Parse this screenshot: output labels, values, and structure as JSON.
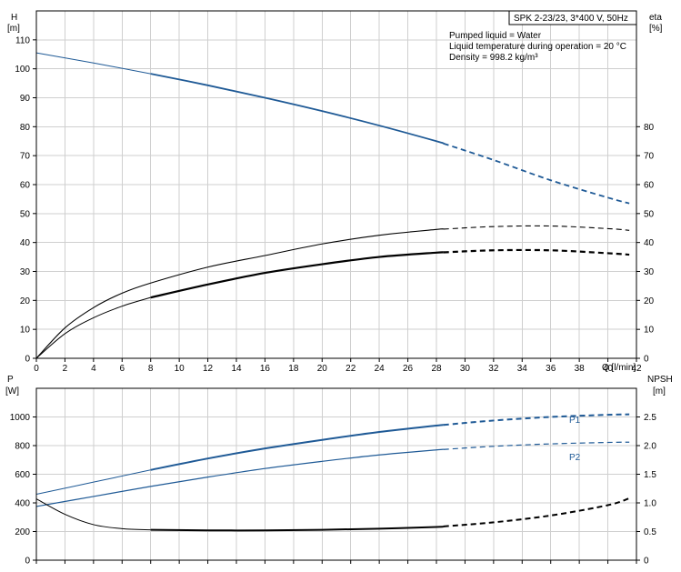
{
  "info_box": {
    "title": "SPK 2-23/23, 3*400 V, 50Hz",
    "lines": [
      "Pumped liquid = Water",
      "Liquid temperature during operation = 20 °C",
      "Density = 998.2 kg/m³"
    ]
  },
  "chart_data": [
    {
      "type": "line",
      "name": "head-efficiency",
      "ylabel_left": "H",
      "ylabel_left_unit": "[m]",
      "ylabel_right": "eta",
      "ylabel_right_unit": "[%]",
      "xlabel": "Q [l/min]",
      "xlim": [
        0,
        42
      ],
      "ylim_left": [
        0,
        120
      ],
      "ylim_right": [
        0,
        120
      ],
      "x_ticks": [
        0,
        2,
        4,
        6,
        8,
        10,
        12,
        14,
        16,
        18,
        20,
        22,
        24,
        26,
        28,
        30,
        32,
        34,
        36,
        38,
        40,
        42
      ],
      "y_ticks_left": [
        0,
        10,
        20,
        30,
        40,
        50,
        60,
        70,
        80,
        90,
        100,
        110
      ],
      "y_ticks_right": [
        0,
        10,
        20,
        30,
        40,
        50,
        60,
        70,
        80
      ],
      "grid": true,
      "series": [
        {
          "key": "H",
          "axis": "left",
          "color": "#1f5a96",
          "x": [
            0,
            4,
            8,
            12,
            16,
            20,
            24,
            28,
            32,
            36,
            40,
            41.5
          ],
          "y": [
            105.5,
            102,
            98.3,
            94.3,
            90,
            85.4,
            80.4,
            75,
            68.5,
            61.5,
            55.5,
            53.5
          ],
          "solid_range": [
            8,
            28.5
          ]
        },
        {
          "key": "eta_total",
          "axis": "right",
          "color": "#000000",
          "x": [
            0,
            2,
            4,
            6,
            8,
            12,
            16,
            20,
            24,
            28,
            32,
            36,
            40,
            41.5
          ],
          "y": [
            0,
            10.5,
            17.5,
            22.5,
            26,
            31.5,
            35.5,
            39.5,
            42.5,
            44.5,
            45.5,
            45.7,
            44.8,
            44.2
          ],
          "solid_range": [
            0,
            28.5
          ]
        },
        {
          "key": "eta_pump",
          "axis": "right",
          "color": "#000000",
          "x": [
            0,
            2,
            4,
            6,
            8,
            12,
            16,
            20,
            24,
            28,
            32,
            36,
            40,
            41.5
          ],
          "y": [
            0,
            8.5,
            14,
            18,
            21,
            25.5,
            29.5,
            32.5,
            35,
            36.5,
            37.3,
            37.3,
            36.3,
            35.8
          ],
          "solid_range": [
            8,
            28.5
          ]
        }
      ]
    },
    {
      "type": "line",
      "name": "power-npsh",
      "ylabel_left": "P",
      "ylabel_left_unit": "[W]",
      "ylabel_right": "NPSH",
      "ylabel_right_unit": "[m]",
      "xlim": [
        0,
        42
      ],
      "ylim_left": [
        0,
        1200
      ],
      "ylim_right": [
        0,
        3
      ],
      "y_ticks_left": [
        0,
        200,
        400,
        600,
        800,
        1000
      ],
      "y_ticks_right": [
        0,
        0.5,
        1.0,
        1.5,
        2.0,
        2.5
      ],
      "y_tick_labels_right": [
        "0",
        "0.5",
        "1.0",
        "1.5",
        "2.0",
        "2.5"
      ],
      "grid": true,
      "series": [
        {
          "key": "P1",
          "name": "P1",
          "axis": "left",
          "color": "#1f5a96",
          "x": [
            0,
            4,
            8,
            12,
            16,
            20,
            24,
            28,
            32,
            36,
            40,
            41.5
          ],
          "y": [
            460,
            545,
            630,
            710,
            780,
            840,
            895,
            940,
            975,
            1000,
            1015,
            1018
          ],
          "solid_range": [
            8,
            28.5
          ]
        },
        {
          "key": "P2",
          "name": "P2",
          "axis": "left",
          "color": "#1f5a96",
          "x": [
            0,
            4,
            8,
            12,
            16,
            20,
            24,
            28,
            32,
            36,
            40,
            41.5
          ],
          "y": [
            375,
            445,
            515,
            580,
            640,
            690,
            735,
            770,
            795,
            812,
            822,
            824
          ],
          "solid_range": [
            0,
            28.5
          ]
        },
        {
          "key": "NPSH",
          "axis": "right",
          "color": "#000000",
          "x": [
            0,
            2,
            4,
            6,
            8,
            12,
            16,
            20,
            24,
            28,
            32,
            36,
            40,
            41.5
          ],
          "y": [
            1.07,
            0.8,
            0.62,
            0.55,
            0.53,
            0.52,
            0.52,
            0.53,
            0.55,
            0.58,
            0.66,
            0.78,
            0.96,
            1.08
          ],
          "solid_range": [
            8,
            28.5
          ]
        }
      ]
    }
  ]
}
